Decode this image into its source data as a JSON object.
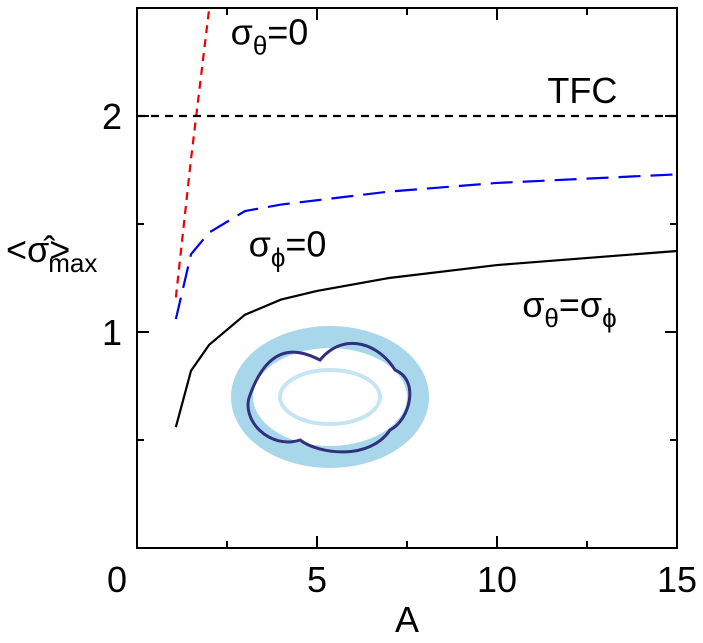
{
  "chart_data": {
    "type": "line",
    "xlabel": "A",
    "ylabel": [
      "<σ̂>",
      "max"
    ],
    "xlim": [
      0,
      15
    ],
    "ylim": [
      0,
      2.5
    ],
    "xticks": [
      0,
      5,
      10,
      15
    ],
    "xminorticks": [
      2.5,
      7.5,
      12.5
    ],
    "yticks": [
      1,
      2
    ],
    "yminorticks": [
      0.5,
      1.5
    ],
    "series": [
      {
        "color": "#000000",
        "dash": "solid",
        "x": [
          1.08,
          1.5,
          2,
          3,
          4,
          5,
          7,
          10,
          15
        ],
        "values": [
          0.56,
          0.82,
          0.94,
          1.08,
          1.15,
          1.19,
          1.25,
          1.31,
          1.375
        ]
      },
      {
        "color": "#0000ee",
        "dash": "long",
        "x": [
          1.08,
          1.5,
          2,
          3,
          4,
          5,
          7,
          10,
          15
        ],
        "values": [
          1.06,
          1.36,
          1.46,
          1.56,
          1.59,
          1.61,
          1.65,
          1.69,
          1.73
        ]
      },
      {
        "color": "#ee0000",
        "dash": "short",
        "x": [
          1.08,
          1.5,
          2.0
        ],
        "values": [
          1.16,
          1.8,
          2.49
        ]
      },
      {
        "color": "#000000",
        "dash": "short",
        "x": [
          0,
          15
        ],
        "values": [
          2,
          2
        ]
      }
    ],
    "annotations": [
      {
        "parts": [
          "σ",
          "θ",
          "=0"
        ],
        "x": 2.6,
        "y": 2.33
      },
      {
        "parts": [
          "TFC"
        ],
        "x": 11.4,
        "y": 2.06
      },
      {
        "parts": [
          "σ",
          "ϕ",
          "=0"
        ],
        "x": 3.1,
        "y": 1.35
      },
      {
        "parts": [
          "σ",
          "θ",
          "=σ",
          "ϕ"
        ],
        "x": 10.7,
        "y": 1.07
      }
    ]
  }
}
